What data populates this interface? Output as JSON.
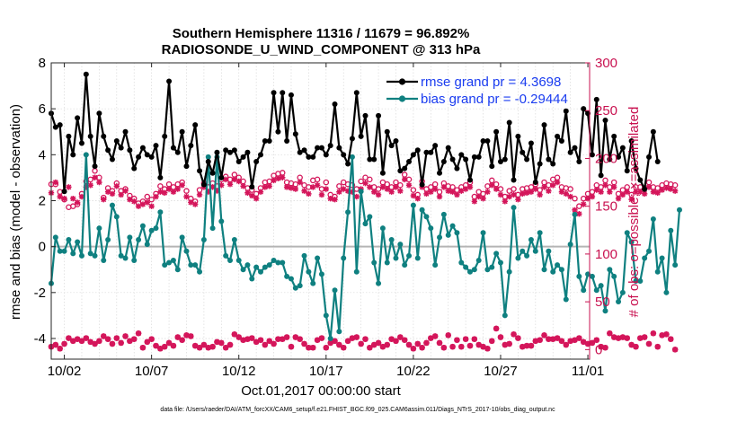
{
  "chart_data": {
    "type": "line",
    "title": [
      "Southern Hemisphere 11316 / 11679 = 96.892%",
      "RADIOSONDE_U_WIND_COMPONENT @ 313 hPa"
    ],
    "xlabel": "Oct.01,2017 00:00:00 start",
    "ylabel_left": "rmse and bias (model - observation)",
    "ylabel_right": "# of obs: o=possible; ×=assimilated",
    "xlim": [
      1.25,
      32.1
    ],
    "ylim_left": [
      -4.9,
      8
    ],
    "ylim_right": [
      -10,
      300
    ],
    "x_ticks": [
      {
        "v": 2,
        "label": "10/02"
      },
      {
        "v": 7,
        "label": "10/07"
      },
      {
        "v": 12,
        "label": "10/12"
      },
      {
        "v": 17,
        "label": "10/17"
      },
      {
        "v": 22,
        "label": "10/22"
      },
      {
        "v": 27,
        "label": "10/27"
      },
      {
        "v": 32,
        "label": "11/01"
      }
    ],
    "y_ticks_left": [
      "-4",
      "-2",
      "0",
      "2",
      "4",
      "6",
      "8"
    ],
    "y_ticks_right": [
      "0",
      "50",
      "100",
      "150",
      "200",
      "250",
      "300"
    ],
    "colors": {
      "rmse": "#000000",
      "bias": "#0f8080",
      "obs": "#d4155a",
      "zero": "#b4b4b4",
      "legend_text": "#1a3cf0",
      "right_axis": "#c8104f"
    },
    "legend": [
      {
        "name": "rmse grand pr = 4.3698"
      },
      {
        "name": "bias grand pr = -0.29444"
      }
    ],
    "x_start": 1.25,
    "x_step": 0.25,
    "series": [
      {
        "name": "rmse",
        "axis": "left",
        "values": [
          5.8,
          5.2,
          5.3,
          2.4,
          4.8,
          4.0,
          5.6,
          4.5,
          7.5,
          4.8,
          3.5,
          5.8,
          4.8,
          4.2,
          3.8,
          4.6,
          4.3,
          5.0,
          4.2,
          3.4,
          3.9,
          4.3,
          4.0,
          3.9,
          4.4,
          3.0,
          4.8,
          7.2,
          4.3,
          4.1,
          5.0,
          3.5,
          4.4,
          5.3,
          3.3,
          2.7,
          3.7,
          3.2,
          4.1,
          3.0,
          4.2,
          4.1,
          4.2,
          3.7,
          3.9,
          4.1,
          2.6,
          3.7,
          4.0,
          4.6,
          4.6,
          6.7,
          5.0,
          6.7,
          4.6,
          6.6,
          4.9,
          4.1,
          4.2,
          3.9,
          3.9,
          4.3,
          4.3,
          4.0,
          4.4,
          6.2,
          4.3,
          4.0,
          3.6,
          4.7,
          6.7,
          4.8,
          5.7,
          3.8,
          3.8,
          5.7,
          3.2,
          5.0,
          4.4,
          4.6,
          3.3,
          3.4,
          3.7,
          4.0,
          4.2,
          2.7,
          4.1,
          4.1,
          4.4,
          3.2,
          3.7,
          4.3,
          3.8,
          3.4,
          4.0,
          3.8,
          2.9,
          3.9,
          3.9,
          4.6,
          4.6,
          3.5,
          5.0,
          3.7,
          3.8,
          5.4,
          2.9,
          4.8,
          4.1,
          3.8,
          4.5,
          2.8,
          3.6,
          5.3,
          3.8,
          3.6,
          4.8,
          4.6,
          5.9,
          4.1,
          4.3,
          3.7,
          6.0,
          5.8,
          4.0,
          6.4,
          3.1,
          5.5,
          3.8,
          4.8,
          3.9,
          4.3,
          3.3,
          4.6,
          3.4,
          2.9,
          2.5,
          3.9,
          5.0,
          3.7
        ]
      },
      {
        "name": "bias",
        "axis": "left",
        "values": [
          -1.6,
          0.4,
          -0.2,
          -0.2,
          0.3,
          -0.3,
          0.2,
          -0.4,
          4.0,
          -0.3,
          -0.4,
          0.8,
          -0.6,
          0.3,
          1.8,
          1.3,
          -0.4,
          -0.5,
          0.4,
          -0.6,
          0.3,
          0.9,
          0.1,
          0.7,
          0.8,
          1.5,
          -0.8,
          -0.7,
          -0.6,
          -1.0,
          0.4,
          -0.2,
          -0.8,
          -0.8,
          -1.1,
          0.3,
          3.9,
          0.8,
          3.9,
          1.1,
          -0.4,
          -0.6,
          0.3,
          -0.6,
          -1.0,
          -0.8,
          -1.4,
          -0.9,
          -1.1,
          -0.9,
          -0.8,
          -0.6,
          -0.7,
          -0.7,
          -1.3,
          -1.4,
          -1.8,
          -1.7,
          -0.4,
          -1.1,
          -1.6,
          -0.5,
          -1.2,
          -3.0,
          -4.0,
          -1.9,
          -3.7,
          -0.5,
          1.5,
          3.9,
          -1.1,
          2.4,
          1.0,
          1.3,
          -0.7,
          -1.6,
          0.8,
          -0.7,
          0.3,
          -0.5,
          0.1,
          -0.8,
          -0.4,
          1.8,
          -0.5,
          1.6,
          1.3,
          0.8,
          -0.8,
          0.4,
          1.4,
          0.5,
          0.9,
          0.6,
          -0.7,
          -0.9,
          -1.1,
          -1.0,
          -0.6,
          0.6,
          -1.0,
          -0.9,
          -0.3,
          -0.7,
          -3.0,
          -1.1,
          1.7,
          -0.5,
          -0.2,
          -0.4,
          0.3,
          -0.2,
          0.6,
          -1.0,
          -0.2,
          -1.1,
          -0.8,
          -1.0,
          -2.3,
          0.1,
          1.4,
          -1.3,
          -1.9,
          -1.2,
          -1.3,
          -1.9,
          -1.7,
          -2.8,
          -1.0,
          -1.3,
          -2.4,
          -2.0,
          0.6,
          0.2,
          -1.5,
          -1.5,
          -0.5,
          -0.2,
          1.2,
          -1.1,
          -0.5,
          -2.0,
          0.7,
          -0.8,
          1.6
        ]
      },
      {
        "name": "obs_possible",
        "axis": "right",
        "values": [
          173,
          173,
          165,
          157,
          149,
          150,
          152,
          163,
          176,
          178,
          187,
          180,
          159,
          169,
          166,
          174,
          166,
          168,
          161,
          158,
          153,
          155,
          160,
          157,
          163,
          171,
          168,
          173,
          170,
          173,
          175,
          166,
          158,
          155,
          167,
          174,
          170,
          174,
          171,
          178,
          181,
          178,
          183,
          180,
          176,
          169,
          167,
          163,
          169,
          175,
          176,
          182,
          184,
          185,
          175,
          174,
          173,
          180,
          172,
          170,
          177,
          178,
          168,
          175,
          162,
          160,
          171,
          175,
          173,
          172,
          168,
          176,
          180,
          178,
          170,
          168,
          175,
          173,
          170,
          175,
          172,
          183,
          178,
          167,
          162,
          176,
          168,
          170,
          173,
          165,
          174,
          171,
          170,
          167,
          170,
          172,
          175,
          160,
          165,
          163,
          171,
          177,
          173,
          168,
          160,
          166,
          168,
          162,
          168,
          169,
          170,
          173,
          167,
          175,
          172,
          178,
          180,
          170,
          169,
          168,
          158,
          150,
          158,
          163,
          165,
          172,
          170,
          177,
          170,
          175,
          163,
          167,
          170,
          162,
          170,
          170,
          169,
          175,
          170,
          169,
          172,
          174,
          173,
          172
        ]
      },
      {
        "name": "obs_assimilated",
        "axis": "right",
        "values": [
          164,
          175,
          160,
          158,
          170,
          158,
          154,
          160,
          170,
          172,
          180,
          175,
          157,
          165,
          163,
          171,
          162,
          166,
          157,
          155,
          150,
          152,
          154,
          150,
          160,
          165,
          164,
          168,
          165,
          168,
          172,
          160,
          154,
          152,
          162,
          170,
          165,
          170,
          166,
          172,
          178,
          173,
          178,
          176,
          171,
          164,
          161,
          158,
          165,
          170,
          171,
          177,
          179,
          180,
          170,
          169,
          168,
          175,
          166,
          163,
          170,
          172,
          162,
          168,
          158,
          157,
          165,
          168,
          166,
          165,
          160,
          168,
          174,
          170,
          165,
          162,
          170,
          168,
          165,
          170,
          166,
          178,
          172,
          161,
          158,
          170,
          163,
          165,
          168,
          160,
          170,
          166,
          165,
          162,
          166,
          168,
          170,
          155,
          160,
          158,
          165,
          172,
          168,
          162,
          155,
          160,
          162,
          157,
          163,
          164,
          165,
          168,
          162,
          170,
          166,
          172,
          175,
          165,
          163,
          160,
          146,
          142,
          152,
          158,
          160,
          167,
          165,
          172,
          165,
          170,
          158,
          162,
          165,
          157,
          165,
          165,
          163,
          170,
          165,
          164,
          167,
          169,
          168,
          166
        ]
      },
      {
        "name": "obs_possible_bottom",
        "axis": "right",
        "values": [
          3,
          5,
          1,
          6,
          12,
          9,
          11,
          9,
          12,
          8,
          6,
          9,
          14,
          11,
          6,
          12,
          7,
          14,
          9,
          11,
          17,
          2,
          8,
          11,
          4,
          1,
          3,
          7,
          4,
          13,
          10,
          15,
          14,
          4,
          2,
          5,
          2,
          3,
          8,
          7,
          2,
          5,
          16,
          13,
          10,
          11,
          12,
          8,
          10,
          5,
          9,
          6,
          11,
          11,
          13,
          3,
          13,
          11,
          6,
          2,
          2,
          10,
          12,
          2,
          7,
          9,
          5,
          2,
          9,
          12,
          13,
          6,
          11,
          2,
          5,
          7,
          3,
          5,
          11,
          9,
          13,
          10,
          5,
          1,
          6,
          2,
          7,
          12,
          14,
          7,
          2,
          15,
          3,
          10,
          3,
          11,
          4,
          11,
          5,
          3,
          1,
          9,
          22,
          13,
          5,
          6,
          16,
          12,
          3,
          4,
          4,
          9,
          10,
          15,
          11,
          11,
          12,
          9,
          5,
          9,
          10,
          12,
          8,
          6,
          7,
          10,
          3,
          2,
          17,
          13,
          12,
          13,
          12,
          5,
          3,
          12,
          13,
          6,
          17,
          3,
          15,
          16,
          11,
          0
        ]
      },
      {
        "name": "obs_assimilated_bottom",
        "axis": "right",
        "values": [
          3,
          5,
          1,
          6,
          12,
          9,
          11,
          9,
          12,
          8,
          6,
          9,
          14,
          11,
          6,
          12,
          7,
          14,
          9,
          11,
          17,
          2,
          8,
          11,
          4,
          1,
          3,
          7,
          4,
          13,
          10,
          15,
          14,
          4,
          2,
          5,
          2,
          3,
          8,
          7,
          2,
          5,
          16,
          13,
          10,
          11,
          12,
          8,
          10,
          5,
          9,
          6,
          11,
          11,
          13,
          3,
          13,
          11,
          6,
          2,
          2,
          10,
          12,
          2,
          7,
          9,
          5,
          2,
          9,
          12,
          13,
          6,
          11,
          2,
          5,
          7,
          3,
          5,
          11,
          9,
          13,
          10,
          5,
          1,
          6,
          2,
          7,
          12,
          14,
          7,
          2,
          15,
          3,
          10,
          3,
          11,
          4,
          11,
          5,
          3,
          1,
          9,
          22,
          13,
          5,
          6,
          16,
          12,
          3,
          4,
          4,
          9,
          10,
          15,
          11,
          11,
          12,
          9,
          5,
          9,
          10,
          12,
          8,
          6,
          7,
          10,
          3,
          2,
          17,
          13,
          12,
          13,
          12,
          5,
          3,
          12,
          13,
          6,
          17,
          3,
          15,
          16,
          11,
          0
        ]
      }
    ],
    "footer": "data file: /Users/raeder/DAI/ATM_forcXX/CAM6_setup/f.e21.FHIST_BGC.f09_025.CAM6assim.011/Diags_NTrS_2017-10/obs_diag_output.nc"
  }
}
